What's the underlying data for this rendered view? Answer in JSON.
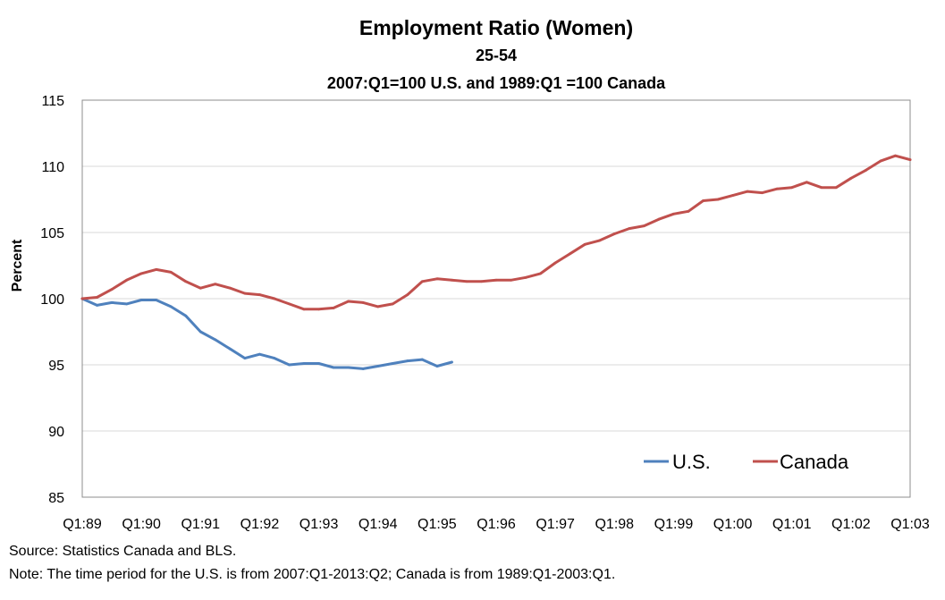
{
  "chart_data": {
    "type": "line",
    "title": "Employment Ratio (Women)",
    "subtitle_1": "25-54",
    "subtitle_2": "2007:Q1=100 U.S. and 1989:Q1 =100 Canada",
    "ylabel": "Percent",
    "xlabel": "",
    "ylim": [
      85,
      115
    ],
    "yticks": [
      85,
      90,
      95,
      100,
      105,
      110,
      115
    ],
    "xtick_labels": [
      "Q1:89",
      "Q1:90",
      "Q1:91",
      "Q1:92",
      "Q1:93",
      "Q1:94",
      "Q1:95",
      "Q1:96",
      "Q1:97",
      "Q1:98",
      "Q1:99",
      "Q1:00",
      "Q1:01",
      "Q1:02",
      "Q1:03"
    ],
    "grid": true,
    "legend_position": "bottom-right",
    "series": [
      {
        "name": "U.S.",
        "color": "#4F81BD",
        "values": [
          100.0,
          99.5,
          99.7,
          99.6,
          99.9,
          99.9,
          99.4,
          98.7,
          97.5,
          96.9,
          96.2,
          95.5,
          95.8,
          95.5,
          95.0,
          95.1,
          95.1,
          94.8,
          94.8,
          94.7,
          94.9,
          95.1,
          95.3,
          95.4,
          94.9,
          95.2
        ]
      },
      {
        "name": "Canada",
        "color": "#C0504D",
        "values": [
          100.0,
          100.1,
          100.7,
          101.4,
          101.9,
          102.2,
          102.0,
          101.3,
          100.8,
          101.1,
          100.8,
          100.4,
          100.3,
          100.0,
          99.6,
          99.2,
          99.2,
          99.3,
          99.8,
          99.7,
          99.4,
          99.6,
          100.3,
          101.3,
          101.5,
          101.4,
          101.3,
          101.3,
          101.4,
          101.4,
          101.6,
          101.9,
          102.7,
          103.4,
          104.1,
          104.4,
          104.9,
          105.3,
          105.5,
          106.0,
          106.4,
          106.6,
          107.4,
          107.5,
          107.8,
          108.1,
          108.0,
          108.3,
          108.4,
          108.8,
          108.4,
          108.4,
          109.1,
          109.7,
          110.4,
          110.8,
          110.5
        ]
      }
    ]
  },
  "footer": {
    "source": "Source: Statistics Canada and BLS.",
    "note": "Note: The time period for the U.S. is from 2007:Q1-2013:Q2; Canada is from 1989:Q1-2003:Q1."
  }
}
